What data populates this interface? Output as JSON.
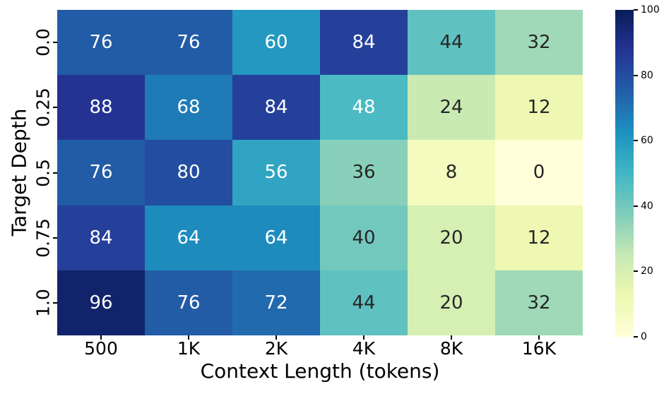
{
  "chart_data": {
    "type": "heatmap",
    "xlabel": "Context Length (tokens)",
    "ylabel": "Target Depth",
    "x_categories": [
      "500",
      "1K",
      "2K",
      "4K",
      "8K",
      "16K"
    ],
    "y_categories": [
      "0.0",
      "0.25",
      "0.5",
      "0.75",
      "1.0"
    ],
    "values": [
      [
        76,
        76,
        60,
        84,
        44,
        32
      ],
      [
        88,
        68,
        84,
        48,
        24,
        12
      ],
      [
        76,
        80,
        56,
        36,
        8,
        0
      ],
      [
        84,
        64,
        64,
        40,
        20,
        12
      ],
      [
        96,
        76,
        72,
        44,
        20,
        32
      ]
    ],
    "vmin": 0,
    "vmax": 100,
    "colormap": "YlGnBu",
    "colormap_stops": [
      "#ffffd9",
      "#edf8b1",
      "#c7e9b4",
      "#7fcdbb",
      "#41b6c4",
      "#1d91c0",
      "#225ea8",
      "#253494",
      "#081d58"
    ],
    "colorbar_ticks": [
      0,
      20,
      40,
      60,
      80,
      100
    ],
    "colorbar_position": "right",
    "annotation_color_light": "#ffffff",
    "annotation_color_dark": "#262626",
    "grid": false
  }
}
